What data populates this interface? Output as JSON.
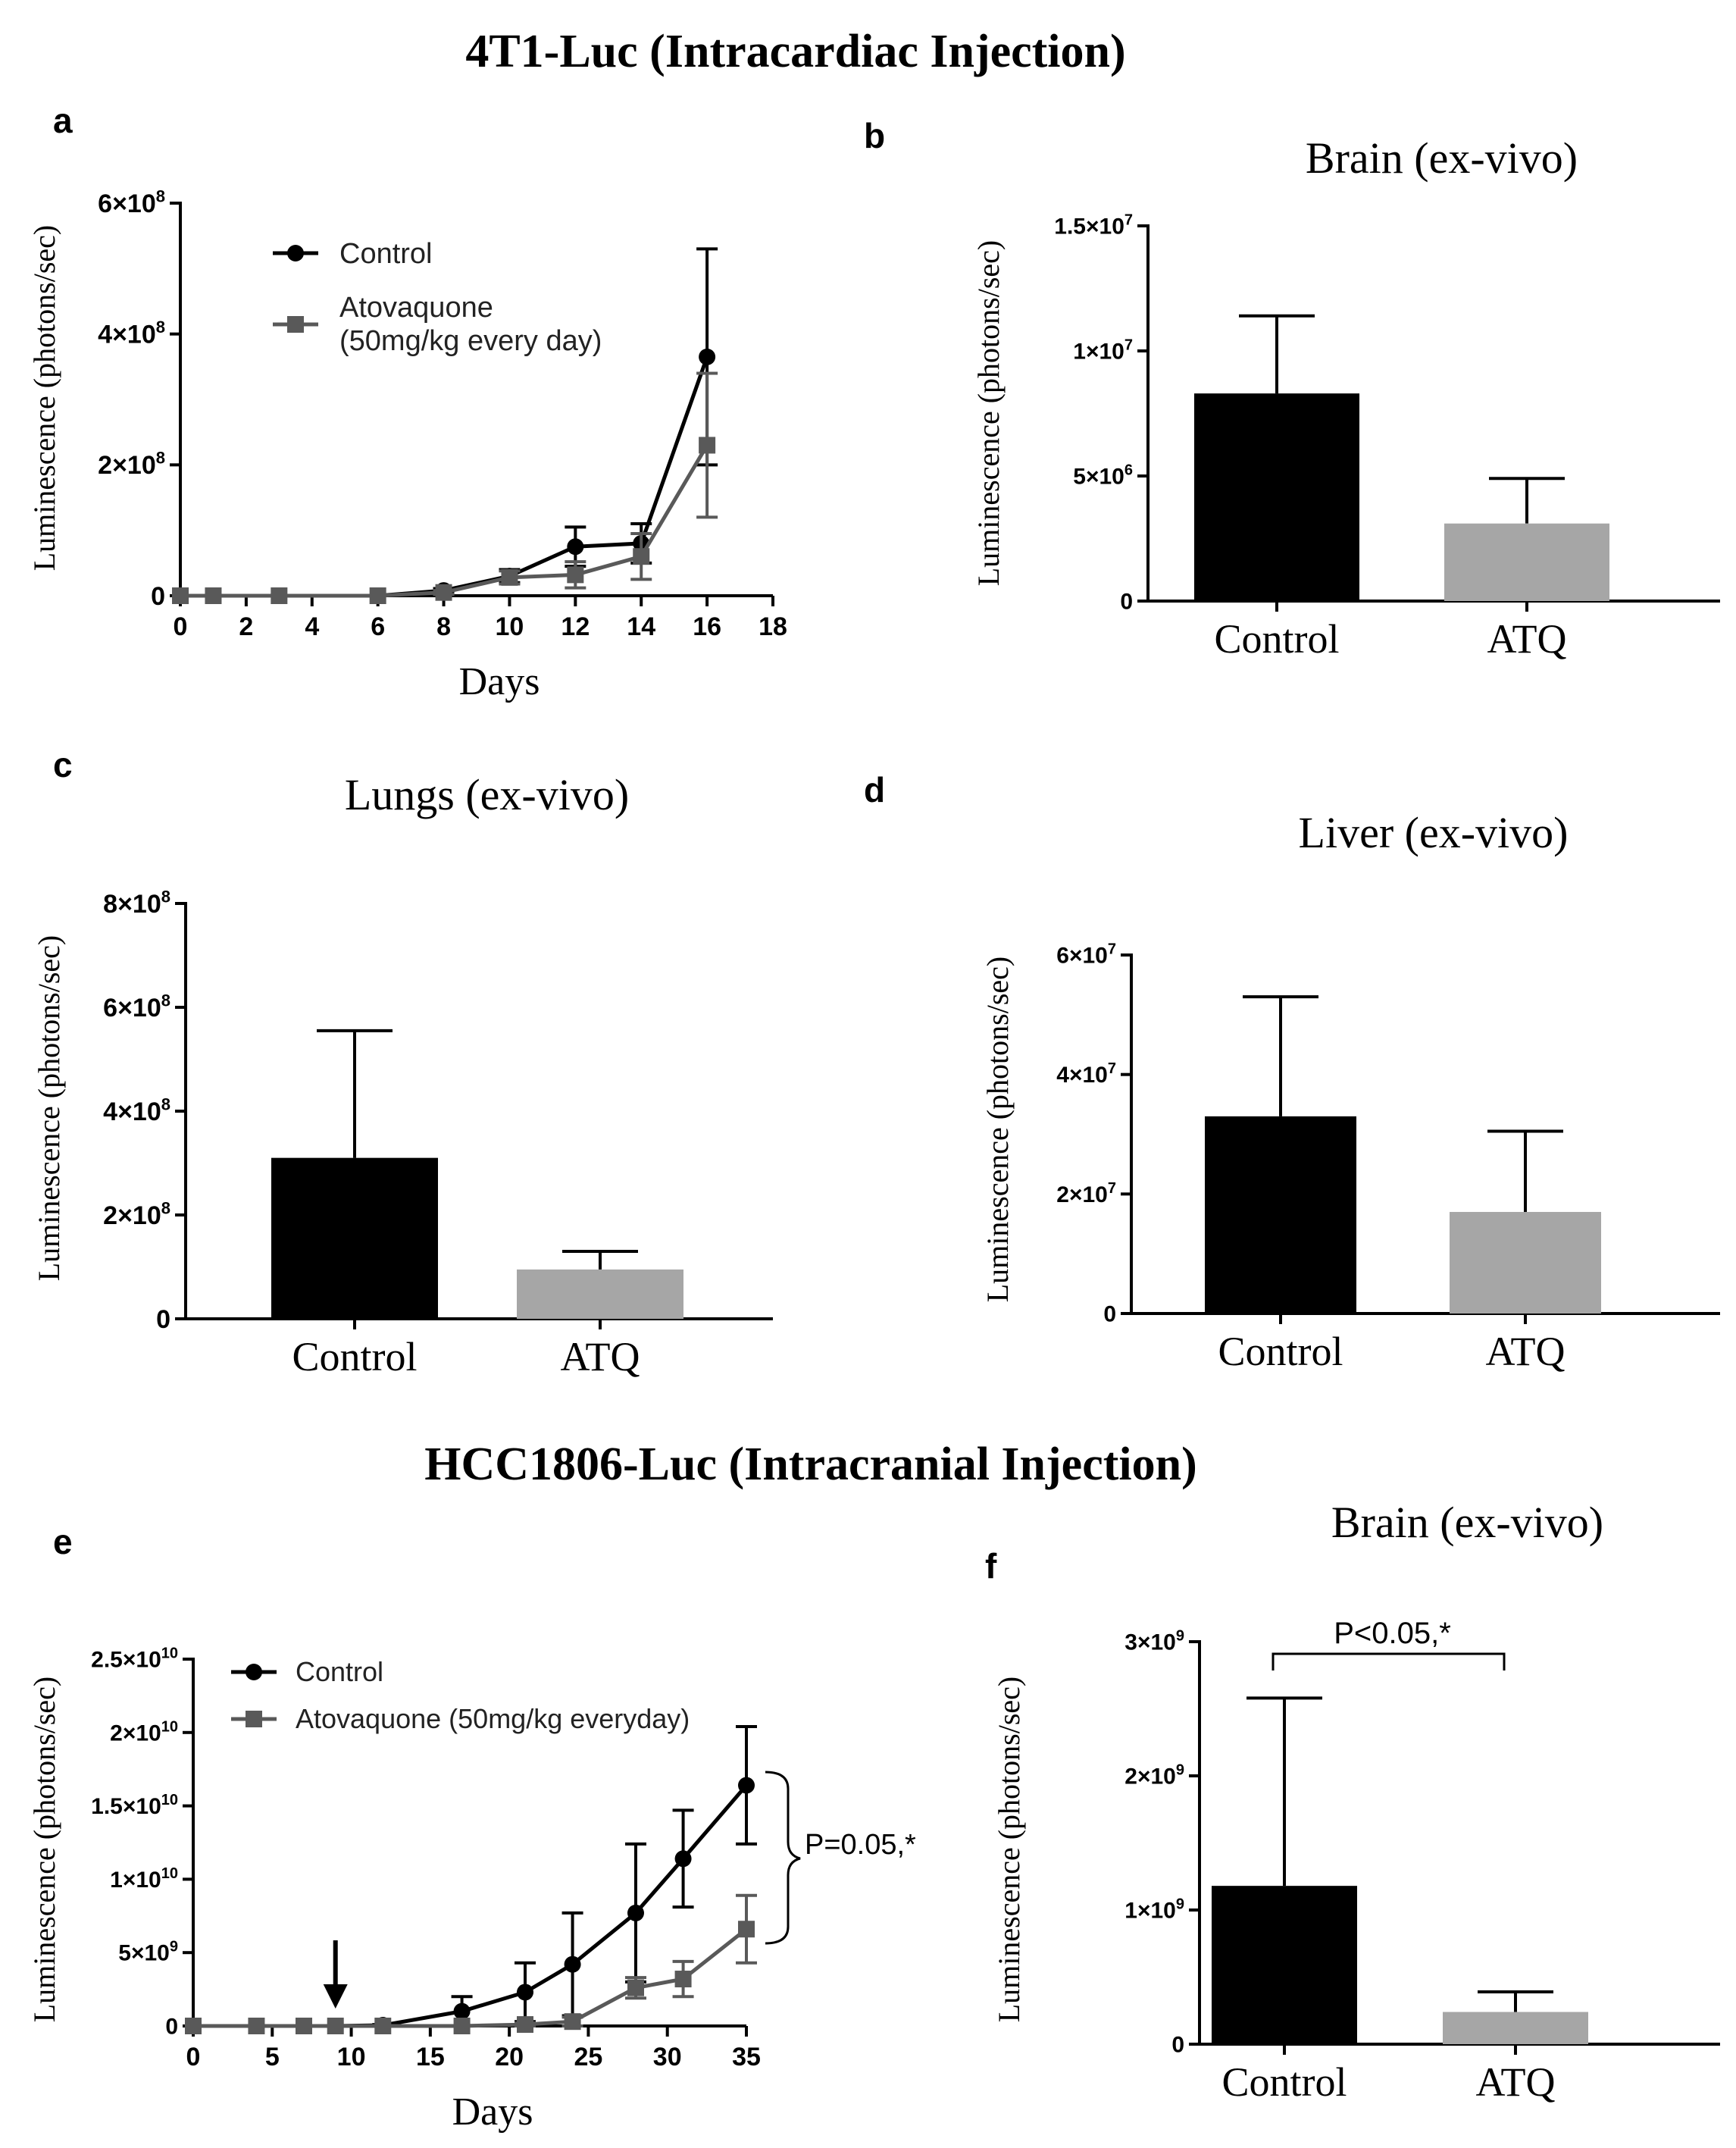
{
  "headings": {
    "top": "4T1-Luc (Intracardiac Injection)",
    "bottom": "HCC1806-Luc (Intracranial Injection)"
  },
  "colors": {
    "control": "#000000",
    "atq": "#a6a6a6",
    "atq_marker": "#595959",
    "axis": "#000000"
  },
  "chart_data": [
    {
      "panel": "a",
      "type": "line",
      "title": "",
      "xlabel": "Days",
      "ylabel": "Luminescence  (photons/sec)",
      "xlim": [
        0,
        18
      ],
      "ylim": [
        0,
        600000000
      ],
      "xticks": [
        "0",
        "2",
        "4",
        "6",
        "8",
        "10",
        "12",
        "14",
        "16",
        "18"
      ],
      "yticks": [
        {
          "value": 0,
          "mantissa": "0",
          "exp": ""
        },
        {
          "value": 200000000,
          "mantissa": "2×10",
          "exp": "8"
        },
        {
          "value": 400000000,
          "mantissa": "4×10",
          "exp": "8"
        },
        {
          "value": 600000000,
          "mantissa": "6×10",
          "exp": "8"
        }
      ],
      "legend": {
        "position": "top-left",
        "labels": [
          "Control",
          "Atovaquone",
          "(50mg/kg every day)"
        ]
      },
      "series": [
        {
          "name": "Control",
          "marker": "circle",
          "x": [
            0,
            1,
            3,
            6,
            8,
            10,
            12,
            14,
            16
          ],
          "y": [
            0,
            0,
            0,
            0,
            8000000,
            30000000,
            75000000,
            80000000,
            365000000
          ],
          "err": [
            0,
            0,
            0,
            0,
            3000000,
            10000000,
            30000000,
            30000000,
            165000000
          ]
        },
        {
          "name": "Atovaquone (50mg/kg every day)",
          "marker": "square",
          "x": [
            0,
            1,
            3,
            6,
            8,
            10,
            12,
            14,
            16
          ],
          "y": [
            0,
            0,
            0,
            0,
            5000000,
            28000000,
            32000000,
            60000000,
            230000000
          ],
          "err": [
            0,
            0,
            0,
            0,
            3000000,
            10000000,
            20000000,
            35000000,
            110000000
          ]
        }
      ]
    },
    {
      "panel": "b",
      "type": "bar",
      "title": "Brain (ex-vivo)",
      "xlabel": "",
      "ylabel": "Luminescence  (photons/sec)",
      "ylim": [
        0,
        15000000
      ],
      "categories": [
        "Control",
        "ATQ"
      ],
      "values": [
        8300000,
        3100000
      ],
      "err": [
        3100000,
        1800000
      ],
      "yticks": [
        {
          "value": 0,
          "mantissa": "0",
          "exp": ""
        },
        {
          "value": 5000000,
          "mantissa": "5×10",
          "exp": "6"
        },
        {
          "value": 10000000,
          "mantissa": "1×10",
          "exp": "7"
        },
        {
          "value": 15000000,
          "mantissa": "1.5×10",
          "exp": "7"
        }
      ]
    },
    {
      "panel": "c",
      "type": "bar",
      "title": "Lungs (ex-vivo)",
      "xlabel": "",
      "ylabel": "Luminescence  (photons/sec)",
      "ylim": [
        0,
        800000000
      ],
      "categories": [
        "Control",
        "ATQ"
      ],
      "values": [
        310000000,
        95000000
      ],
      "err": [
        245000000,
        35000000
      ],
      "yticks": [
        {
          "value": 0,
          "mantissa": "0",
          "exp": ""
        },
        {
          "value": 200000000,
          "mantissa": "2×10",
          "exp": "8"
        },
        {
          "value": 400000000,
          "mantissa": "4×10",
          "exp": "8"
        },
        {
          "value": 600000000,
          "mantissa": "6×10",
          "exp": "8"
        },
        {
          "value": 800000000,
          "mantissa": "8×10",
          "exp": "8"
        }
      ]
    },
    {
      "panel": "d",
      "type": "bar",
      "title": "Liver (ex-vivo)",
      "xlabel": "",
      "ylabel": "Luminescence  (photons/sec)",
      "ylim": [
        0,
        60000000
      ],
      "categories": [
        "Control",
        "ATQ"
      ],
      "values": [
        33000000,
        17000000
      ],
      "err": [
        20000000,
        13500000
      ],
      "yticks": [
        {
          "value": 0,
          "mantissa": "0",
          "exp": ""
        },
        {
          "value": 20000000,
          "mantissa": "2×10",
          "exp": "7"
        },
        {
          "value": 40000000,
          "mantissa": "4×10",
          "exp": "7"
        },
        {
          "value": 60000000,
          "mantissa": "6×10",
          "exp": "7"
        }
      ]
    },
    {
      "panel": "e",
      "type": "line",
      "title": "",
      "xlabel": "Days",
      "ylabel": "Luminescence  (photons/sec)",
      "xlim": [
        0,
        35
      ],
      "ylim": [
        0,
        25000000000
      ],
      "xticks": [
        "0",
        "5",
        "10",
        "15",
        "20",
        "25",
        "30",
        "35"
      ],
      "yticks": [
        {
          "value": 0,
          "mantissa": "0",
          "exp": ""
        },
        {
          "value": 5000000000,
          "mantissa": "5×10",
          "exp": "9"
        },
        {
          "value": 10000000000,
          "mantissa": "1×10",
          "exp": "10"
        },
        {
          "value": 15000000000,
          "mantissa": "1.5×10",
          "exp": "10"
        },
        {
          "value": 20000000000,
          "mantissa": "2×10",
          "exp": "10"
        },
        {
          "value": 25000000000,
          "mantissa": "2.5×10",
          "exp": "10"
        }
      ],
      "legend": {
        "position": "top-left",
        "labels": [
          "Control",
          "Atovaquone (50mg/kg everyday)"
        ]
      },
      "annotation": "P=0.05,*",
      "arrow_day": 9,
      "series": [
        {
          "name": "Control",
          "marker": "circle",
          "x": [
            0,
            4,
            7,
            9,
            12,
            17,
            21,
            24,
            28,
            31,
            35
          ],
          "y": [
            0,
            0,
            0,
            0,
            50000000,
            1000000000,
            2300000000,
            4200000000,
            7700000000,
            11400000000,
            16400000000
          ],
          "err": [
            0,
            0,
            0,
            0,
            50000000,
            1000000000,
            2000000000,
            3500000000,
            4700000000,
            3300000000,
            4000000000
          ]
        },
        {
          "name": "Atovaquone (50mg/kg everyday)",
          "marker": "square",
          "x": [
            0,
            4,
            7,
            9,
            12,
            17,
            21,
            24,
            28,
            31,
            35
          ],
          "y": [
            0,
            0,
            0,
            0,
            0,
            0,
            100000000,
            300000000,
            2600000000,
            3200000000,
            6600000000
          ],
          "err": [
            0,
            0,
            0,
            0,
            0,
            0,
            100000000,
            300000000,
            700000000,
            1200000000,
            2300000000
          ]
        }
      ]
    },
    {
      "panel": "f",
      "type": "bar",
      "title": "Brain (ex-vivo)",
      "xlabel": "",
      "ylabel": "Luminescence  (photons/sec)",
      "ylim": [
        0,
        3000000000
      ],
      "categories": [
        "Control",
        "ATQ"
      ],
      "values": [
        1180000000,
        240000000
      ],
      "err": [
        1400000000,
        150000000
      ],
      "annotation": "P<0.05,*",
      "yticks": [
        {
          "value": 0,
          "mantissa": "0",
          "exp": ""
        },
        {
          "value": 1000000000,
          "mantissa": "1×10",
          "exp": "9"
        },
        {
          "value": 2000000000,
          "mantissa": "2×10",
          "exp": "9"
        },
        {
          "value": 3000000000,
          "mantissa": "3×10",
          "exp": "9"
        }
      ]
    }
  ]
}
